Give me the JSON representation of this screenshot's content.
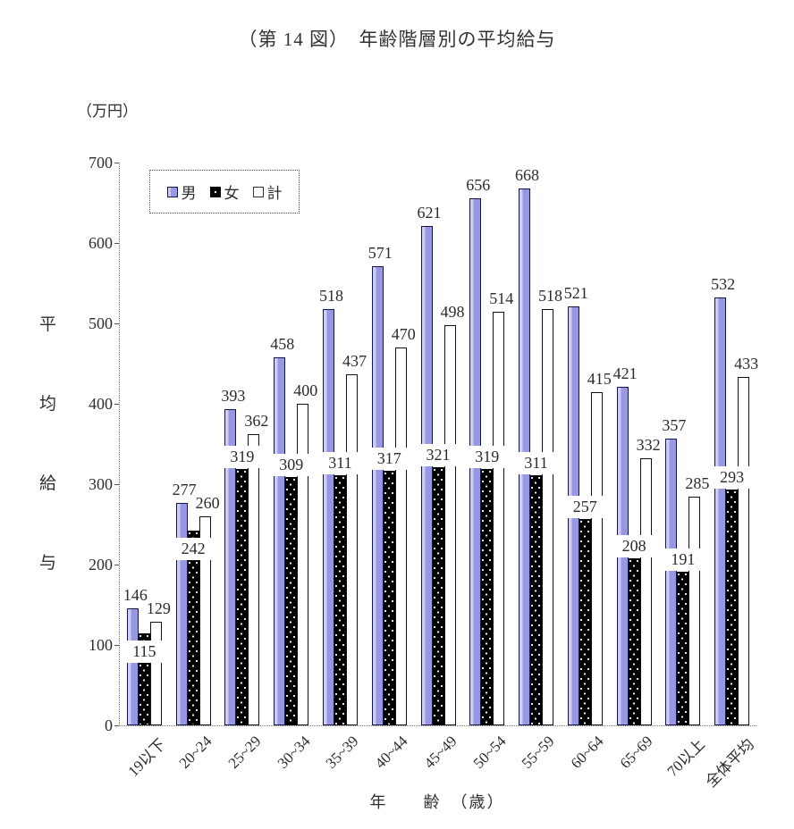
{
  "header": {
    "title": "（第 14 図）　年齢階層別の平均給与"
  },
  "y_axis": {
    "unit_label": "（万円）",
    "title_chars": [
      "平",
      "均",
      "給",
      "与"
    ],
    "ticks": [
      700,
      600,
      500,
      400,
      300,
      200,
      100,
      0
    ],
    "max": 700
  },
  "x_axis": {
    "title": "年　　齢　（歳）"
  },
  "legend": {
    "items": [
      {
        "key": "male",
        "label": "男"
      },
      {
        "key": "female",
        "label": "女"
      },
      {
        "key": "total",
        "label": "計"
      }
    ]
  },
  "chart_data": {
    "type": "bar",
    "title": "（第14図）年齢階層別の平均給与",
    "categories": [
      "19以下",
      "20~24",
      "25~29",
      "30~34",
      "35~39",
      "40~44",
      "45~49",
      "50~54",
      "55~59",
      "60~64",
      "65~69",
      "70以上",
      "全体平均"
    ],
    "series": [
      {
        "name": "男",
        "values": [
          146,
          277,
          393,
          458,
          518,
          571,
          621,
          656,
          668,
          521,
          421,
          357,
          532
        ]
      },
      {
        "name": "女",
        "values": [
          115,
          242,
          319,
          309,
          311,
          317,
          321,
          319,
          311,
          257,
          208,
          191,
          293
        ]
      },
      {
        "name": "計",
        "values": [
          129,
          260,
          362,
          400,
          437,
          470,
          498,
          514,
          518,
          415,
          332,
          285,
          433
        ]
      }
    ],
    "xlabel": "年齢（歳）",
    "ylabel": "平均給与",
    "y_unit": "万円",
    "ylim": [
      0,
      700
    ],
    "grid": false,
    "legend_position": "top-left-inside"
  },
  "colors": {
    "male_fill": "#9797e3",
    "male_highlight": "#ccccf5",
    "bar_border": "#16164a",
    "female_fill": "#000000",
    "female_dot": "#ffffff",
    "total_fill": "#ffffff",
    "text": "#2e2e2e",
    "axis_dotted": "#777777"
  }
}
